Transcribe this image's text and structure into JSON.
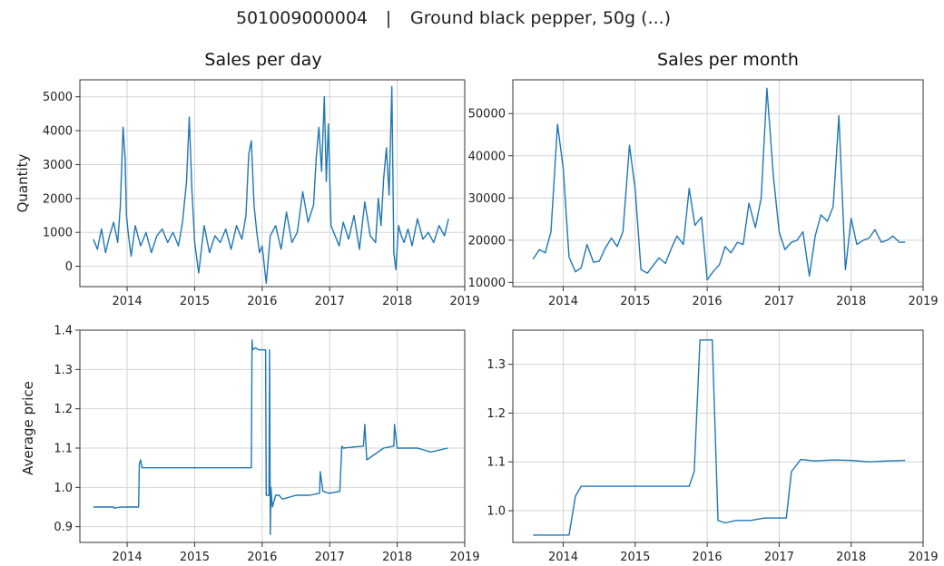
{
  "figure": {
    "code": "501009000004",
    "separator": "|",
    "product": "Ground black pepper, 50g (...)",
    "series_color": "#1f77b4"
  },
  "chart_data": [
    {
      "id": "daily_qty",
      "type": "line",
      "title": "Sales per day",
      "xlabel": "",
      "ylabel": "Quantity",
      "xlim": [
        2013.3,
        2019.0
      ],
      "ylim": [
        -600,
        5500
      ],
      "xticks": [
        2014,
        2015,
        2016,
        2017,
        2018,
        2019
      ],
      "xtick_labels": [
        "2014",
        "2015",
        "2016",
        "2017",
        "2018",
        "2019"
      ],
      "yticks": [
        0,
        1000,
        2000,
        3000,
        4000,
        5000
      ],
      "ytick_labels": [
        "0",
        "1000",
        "2000",
        "3000",
        "4000",
        "5000"
      ],
      "grid": true,
      "x": [
        2013.5,
        2013.56,
        2013.62,
        2013.68,
        2013.74,
        2013.8,
        2013.86,
        2013.9,
        2013.94,
        2013.97,
        2013.99,
        2014.02,
        2014.06,
        2014.12,
        2014.2,
        2014.28,
        2014.36,
        2014.44,
        2014.52,
        2014.6,
        2014.68,
        2014.76,
        2014.82,
        2014.88,
        2014.92,
        2014.96,
        2015.0,
        2015.06,
        2015.14,
        2015.22,
        2015.3,
        2015.38,
        2015.46,
        2015.54,
        2015.62,
        2015.7,
        2015.76,
        2015.8,
        2015.84,
        2015.88,
        2015.92,
        2015.96,
        2016.0,
        2016.06,
        2016.12,
        2016.2,
        2016.28,
        2016.36,
        2016.44,
        2016.52,
        2016.6,
        2016.68,
        2016.76,
        2016.8,
        2016.84,
        2016.88,
        2016.92,
        2016.95,
        2016.98,
        2017.02,
        2017.08,
        2017.14,
        2017.2,
        2017.28,
        2017.36,
        2017.44,
        2017.52,
        2017.6,
        2017.68,
        2017.72,
        2017.76,
        2017.8,
        2017.84,
        2017.88,
        2017.92,
        2017.95,
        2017.98,
        2018.02,
        2018.06,
        2018.1,
        2018.16,
        2018.22,
        2018.3,
        2018.38,
        2018.46,
        2018.54,
        2018.62,
        2018.7,
        2018.76
      ],
      "y": [
        800,
        500,
        1100,
        400,
        900,
        1300,
        700,
        1800,
        4100,
        3200,
        1500,
        900,
        300,
        1200,
        600,
        1000,
        400,
        900,
        1100,
        700,
        1000,
        600,
        1300,
        2500,
        4400,
        2200,
        700,
        -200,
        1200,
        400,
        900,
        700,
        1100,
        500,
        1200,
        800,
        1500,
        3300,
        3700,
        1800,
        1000,
        400,
        600,
        -500,
        900,
        1200,
        500,
        1600,
        700,
        1000,
        2200,
        1300,
        1800,
        3200,
        4100,
        2800,
        5000,
        2500,
        4200,
        1200,
        900,
        600,
        1300,
        800,
        1500,
        500,
        1900,
        900,
        700,
        2000,
        1200,
        2600,
        3500,
        2100,
        5300,
        400,
        -100,
        1200,
        900,
        700,
        1100,
        600,
        1400,
        800,
        1000,
        700,
        1200,
        900,
        1400
      ]
    },
    {
      "id": "monthly_qty",
      "type": "line",
      "title": "Sales per month",
      "xlabel": "",
      "ylabel": "",
      "xlim": [
        2013.3,
        2019.0
      ],
      "ylim": [
        9000,
        58000
      ],
      "xticks": [
        2014,
        2015,
        2016,
        2017,
        2018,
        2019
      ],
      "xtick_labels": [
        "2014",
        "2015",
        "2016",
        "2017",
        "2018",
        "2019"
      ],
      "yticks": [
        10000,
        20000,
        30000,
        40000,
        50000
      ],
      "ytick_labels": [
        "10000",
        "20000",
        "30000",
        "40000",
        "50000"
      ],
      "grid": true,
      "x": [
        2013.58,
        2013.67,
        2013.75,
        2013.83,
        2013.92,
        2014.0,
        2014.08,
        2014.17,
        2014.25,
        2014.33,
        2014.42,
        2014.5,
        2014.58,
        2014.67,
        2014.75,
        2014.83,
        2014.92,
        2015.0,
        2015.08,
        2015.17,
        2015.25,
        2015.33,
        2015.42,
        2015.5,
        2015.58,
        2015.67,
        2015.75,
        2015.83,
        2015.92,
        2016.0,
        2016.08,
        2016.17,
        2016.25,
        2016.33,
        2016.42,
        2016.5,
        2016.58,
        2016.67,
        2016.75,
        2016.83,
        2016.92,
        2017.0,
        2017.08,
        2017.17,
        2017.25,
        2017.33,
        2017.42,
        2017.5,
        2017.58,
        2017.67,
        2017.75,
        2017.83,
        2017.92,
        2018.0,
        2018.08,
        2018.17,
        2018.25,
        2018.33,
        2018.42,
        2018.5,
        2018.58,
        2018.67,
        2018.75
      ],
      "y": [
        15500,
        17800,
        17000,
        22000,
        47500,
        37000,
        16000,
        12500,
        13500,
        19000,
        14800,
        15000,
        18000,
        20500,
        18500,
        22000,
        42500,
        32000,
        13000,
        12200,
        14000,
        15800,
        14500,
        18000,
        21000,
        19000,
        32300,
        23500,
        25500,
        10600,
        12500,
        14200,
        18500,
        17000,
        19500,
        19000,
        28800,
        23000,
        30000,
        56000,
        35000,
        22000,
        17800,
        19500,
        20000,
        22000,
        11500,
        21000,
        26000,
        24500,
        28000,
        49500,
        13000,
        25200,
        19000,
        20000,
        20500,
        22500,
        19500,
        20000,
        21000,
        19500,
        19500
      ]
    },
    {
      "id": "daily_price",
      "type": "line",
      "title": "",
      "xlabel": "",
      "ylabel": "Average price",
      "xlim": [
        2013.3,
        2019.0
      ],
      "ylim": [
        0.86,
        1.4
      ],
      "xticks": [
        2014,
        2015,
        2016,
        2017,
        2018,
        2019
      ],
      "xtick_labels": [
        "2014",
        "2015",
        "2016",
        "2017",
        "2018",
        "2019"
      ],
      "yticks": [
        0.9,
        1.0,
        1.1,
        1.2,
        1.3,
        1.4
      ],
      "ytick_labels": [
        "0.9",
        "1.0",
        "1.1",
        "1.2",
        "1.3",
        "1.4"
      ],
      "grid": true,
      "x": [
        2013.5,
        2013.8,
        2013.81,
        2013.9,
        2014.0,
        2014.17,
        2014.18,
        2014.2,
        2014.22,
        2015.0,
        2015.5,
        2015.84,
        2015.85,
        2015.86,
        2015.9,
        2015.95,
        2016.0,
        2016.05,
        2016.06,
        2016.1,
        2016.11,
        2016.12,
        2016.13,
        2016.15,
        2016.2,
        2016.25,
        2016.3,
        2016.5,
        2016.7,
        2016.85,
        2016.86,
        2016.9,
        2017.0,
        2017.15,
        2017.18,
        2017.2,
        2017.5,
        2017.52,
        2017.55,
        2017.8,
        2017.95,
        2017.96,
        2018.0,
        2018.3,
        2018.5,
        2018.75
      ],
      "y": [
        0.95,
        0.95,
        0.947,
        0.95,
        0.95,
        0.95,
        1.06,
        1.07,
        1.05,
        1.05,
        1.05,
        1.05,
        1.375,
        1.35,
        1.355,
        1.35,
        1.35,
        1.35,
        0.98,
        0.98,
        1.35,
        0.88,
        1.0,
        0.95,
        0.98,
        0.98,
        0.97,
        0.98,
        0.98,
        0.985,
        1.04,
        0.99,
        0.985,
        0.99,
        1.105,
        1.1,
        1.105,
        1.16,
        1.07,
        1.1,
        1.105,
        1.16,
        1.1,
        1.1,
        1.09,
        1.1
      ]
    },
    {
      "id": "monthly_price",
      "type": "line",
      "title": "",
      "xlabel": "",
      "ylabel": "",
      "xlim": [
        2013.3,
        2019.0
      ],
      "ylim": [
        0.935,
        1.37
      ],
      "xticks": [
        2014,
        2015,
        2016,
        2017,
        2018,
        2019
      ],
      "xtick_labels": [
        "2014",
        "2015",
        "2016",
        "2017",
        "2018",
        "2019"
      ],
      "yticks": [
        1.0,
        1.1,
        1.2,
        1.3
      ],
      "ytick_labels": [
        "1.0",
        "1.1",
        "1.2",
        "1.3"
      ],
      "grid": true,
      "x": [
        2013.58,
        2013.75,
        2014.0,
        2014.08,
        2014.17,
        2014.25,
        2014.42,
        2014.75,
        2015.0,
        2015.25,
        2015.5,
        2015.75,
        2015.82,
        2015.9,
        2016.0,
        2016.07,
        2016.15,
        2016.25,
        2016.4,
        2016.6,
        2016.8,
        2017.0,
        2017.1,
        2017.17,
        2017.3,
        2017.5,
        2017.75,
        2018.0,
        2018.25,
        2018.5,
        2018.75
      ],
      "y": [
        0.95,
        0.95,
        0.95,
        0.95,
        1.03,
        1.05,
        1.05,
        1.05,
        1.05,
        1.05,
        1.05,
        1.05,
        1.08,
        1.35,
        1.35,
        1.35,
        0.98,
        0.975,
        0.98,
        0.98,
        0.985,
        0.985,
        0.985,
        1.08,
        1.105,
        1.102,
        1.104,
        1.103,
        1.1,
        1.102,
        1.103
      ]
    }
  ]
}
